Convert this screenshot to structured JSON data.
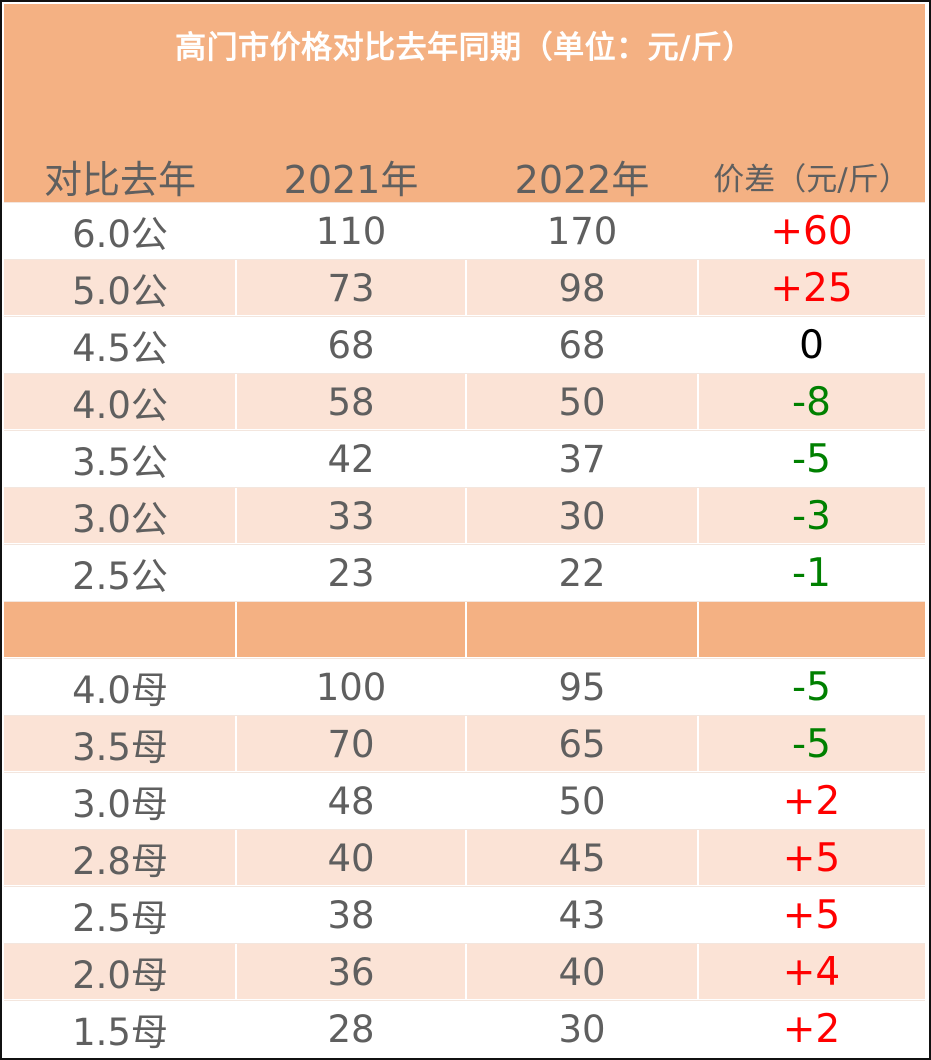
{
  "title": "高门市价格对比去年同期（单位：元/斤）",
  "headers": [
    "对比去年",
    "2021年",
    "2022年",
    "价差（元/斤）"
  ],
  "colors": {
    "header_bg": "#f4b183",
    "row_shade": "#fbe3d6",
    "positive": "#ff0000",
    "negative": "#008000",
    "zero": "#000000",
    "text": "#5f5f5f"
  },
  "male_rows": [
    {
      "spec": "6.0公",
      "y2021": "110",
      "y2022": "170",
      "diff": "+60"
    },
    {
      "spec": "5.0公",
      "y2021": "73",
      "y2022": "98",
      "diff": "+25"
    },
    {
      "spec": "4.5公",
      "y2021": "68",
      "y2022": "68",
      "diff": "0"
    },
    {
      "spec": "4.0公",
      "y2021": "58",
      "y2022": "50",
      "diff": "-8"
    },
    {
      "spec": "3.5公",
      "y2021": "42",
      "y2022": "37",
      "diff": "-5"
    },
    {
      "spec": "3.0公",
      "y2021": "33",
      "y2022": "30",
      "diff": "-3"
    },
    {
      "spec": "2.5公",
      "y2021": "23",
      "y2022": "22",
      "diff": "-1"
    }
  ],
  "female_rows": [
    {
      "spec": "4.0母",
      "y2021": "100",
      "y2022": "95",
      "diff": "-5"
    },
    {
      "spec": "3.5母",
      "y2021": "70",
      "y2022": "65",
      "diff": "-5"
    },
    {
      "spec": "3.0母",
      "y2021": "48",
      "y2022": "50",
      "diff": "+2"
    },
    {
      "spec": "2.8母",
      "y2021": "40",
      "y2022": "45",
      "diff": "+5"
    },
    {
      "spec": "2.5母",
      "y2021": "38",
      "y2022": "43",
      "diff": "+5"
    },
    {
      "spec": "2.0母",
      "y2021": "36",
      "y2022": "40",
      "diff": "+4"
    },
    {
      "spec": "1.5母",
      "y2021": "28",
      "y2022": "30",
      "diff": "+2"
    }
  ]
}
